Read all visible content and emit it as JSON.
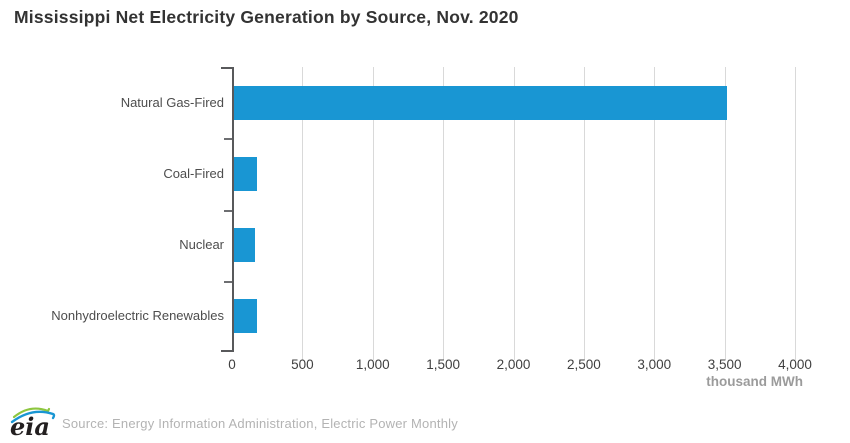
{
  "title": "Mississippi Net Electricity Generation by Source, Nov. 2020",
  "chart_data": {
    "type": "bar",
    "orientation": "horizontal",
    "title": "Mississippi Net Electricity Generation by Source, Nov. 2020",
    "categories": [
      "Natural Gas-Fired",
      "Coal-Fired",
      "Nuclear",
      "Nonhydroelectric Renewables"
    ],
    "values": [
      3500,
      165,
      150,
      160
    ],
    "xlabel": "thousand MWh",
    "ylabel": "",
    "xlim": [
      0,
      4000
    ],
    "xticks": [
      0,
      500,
      1000,
      1500,
      2000,
      2500,
      3000,
      3500,
      4000
    ],
    "grid": true,
    "legend": "none",
    "bar_color": "#1996d3"
  },
  "colors": {
    "bar": "#1996d3",
    "axis": "#58595b",
    "gridline": "#d9d9d9",
    "title": "#333333",
    "tick_label": "#404040",
    "category_label": "#4d4d4d",
    "unit_label": "#9b9b9b",
    "source_text": "#b3b3b3",
    "logo_green": "#8dc63f",
    "logo_blue": "#1996d3"
  },
  "footer": {
    "logo_text": "eia",
    "source": "Source: Energy Information Administration, Electric Power Monthly"
  }
}
